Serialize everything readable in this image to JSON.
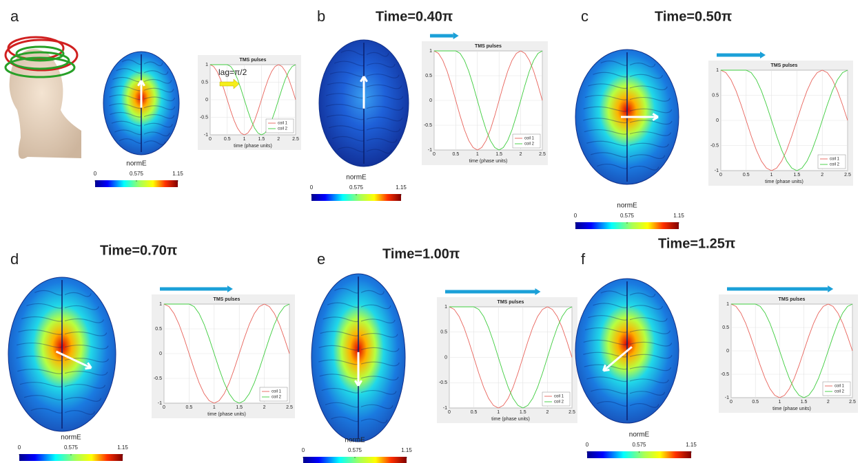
{
  "chart_data": [
    {
      "type": "line",
      "panel": "a",
      "annotation": "lag=π/2",
      "plot_title": "TMS pulses",
      "xlabel": "time (phase units)",
      "x": [
        0,
        0.1,
        0.2,
        0.3,
        0.4,
        0.5,
        0.6,
        0.7,
        0.8,
        0.9,
        1,
        1.1,
        1.2,
        1.3,
        1.4,
        1.5,
        1.6,
        1.7,
        1.8,
        1.9,
        2,
        2.1,
        2.2,
        2.3,
        2.4,
        2.5
      ],
      "series": [
        {
          "name": "coil 1",
          "color": "#e8625a",
          "values": [
            1,
            0.95,
            0.81,
            0.59,
            0.31,
            0,
            -0.31,
            -0.59,
            -0.81,
            -0.95,
            -1,
            -0.95,
            -0.81,
            -0.59,
            -0.31,
            0,
            0.31,
            0.59,
            0.81,
            0.95,
            1,
            0.95,
            0.81,
            0.59,
            0.31,
            0
          ]
        },
        {
          "name": "coil 2",
          "color": "#3ccc3c",
          "values": [
            1,
            1,
            1,
            1,
            1,
            1,
            0.95,
            0.81,
            0.59,
            0.31,
            0,
            -0.31,
            -0.59,
            -0.81,
            -0.95,
            -1,
            -0.95,
            -0.81,
            -0.59,
            -0.31,
            0,
            0.31,
            0.59,
            0.81,
            0.95,
            1
          ]
        }
      ],
      "xlim": [
        0,
        2.5
      ],
      "ylim": [
        -1,
        1
      ],
      "xticks": [
        0,
        0.5,
        1,
        1.5,
        2,
        2.5
      ],
      "yticks": [
        -1,
        -0.5,
        0,
        0.5,
        1
      ],
      "grid": true,
      "legend": "lower right",
      "colorbar": {
        "label": "normE",
        "clim": [
          0,
          1.15
        ],
        "ticks": [
          0,
          0.575,
          1.15
        ]
      }
    },
    {
      "type": "line",
      "panel": "b",
      "title": "Time=0.40π",
      "plot_title": "TMS pulses",
      "xlabel": "time (phase units)",
      "x": [
        0,
        0.1,
        0.2,
        0.3,
        0.4,
        0.5,
        0.6,
        0.7,
        0.8,
        0.9,
        1,
        1.1,
        1.2,
        1.3,
        1.4,
        1.5,
        1.6,
        1.7,
        1.8,
        1.9,
        2,
        2.1,
        2.2,
        2.3,
        2.4,
        2.5
      ],
      "series": [
        {
          "name": "coil 1",
          "color": "#e8625a",
          "values": [
            1,
            0.95,
            0.81,
            0.59,
            0.31,
            0,
            -0.31,
            -0.59,
            -0.81,
            -0.95,
            -1,
            -0.95,
            -0.81,
            -0.59,
            -0.31,
            0,
            0.31,
            0.59,
            0.81,
            0.95,
            1,
            0.95,
            0.81,
            0.59,
            0.31,
            0
          ]
        },
        {
          "name": "coil 2",
          "color": "#3ccc3c",
          "values": [
            1,
            1,
            1,
            1,
            1,
            1,
            0.95,
            0.81,
            0.59,
            0.31,
            0,
            -0.31,
            -0.59,
            -0.81,
            -0.95,
            -1,
            -0.95,
            -0.81,
            -0.59,
            -0.31,
            0,
            0.31,
            0.59,
            0.81,
            0.95,
            1
          ]
        }
      ],
      "xlim": [
        0,
        2.5
      ],
      "ylim": [
        -1,
        1
      ],
      "xticks": [
        0,
        0.5,
        1,
        1.5,
        2,
        2.5
      ],
      "yticks": [
        -1,
        -0.5,
        0,
        0.5,
        1
      ],
      "grid": true,
      "legend": "lower right",
      "colorbar": {
        "label": "normE",
        "clim": [
          0,
          1.15
        ],
        "ticks": [
          0,
          0.575,
          1.15
        ]
      }
    },
    {
      "type": "line",
      "panel": "c",
      "title": "Time=0.50π",
      "plot_title": "TMS pulses",
      "xlabel": "time (phase units)",
      "x": [
        0,
        0.1,
        0.2,
        0.3,
        0.4,
        0.5,
        0.6,
        0.7,
        0.8,
        0.9,
        1,
        1.1,
        1.2,
        1.3,
        1.4,
        1.5,
        1.6,
        1.7,
        1.8,
        1.9,
        2,
        2.1,
        2.2,
        2.3,
        2.4,
        2.5
      ],
      "series": [
        {
          "name": "coil 1",
          "color": "#e8625a",
          "values": [
            1,
            0.95,
            0.81,
            0.59,
            0.31,
            0,
            -0.31,
            -0.59,
            -0.81,
            -0.95,
            -1,
            -0.95,
            -0.81,
            -0.59,
            -0.31,
            0,
            0.31,
            0.59,
            0.81,
            0.95,
            1,
            0.95,
            0.81,
            0.59,
            0.31,
            0
          ]
        },
        {
          "name": "coil 2",
          "color": "#3ccc3c",
          "values": [
            1,
            1,
            1,
            1,
            1,
            1,
            0.95,
            0.81,
            0.59,
            0.31,
            0,
            -0.31,
            -0.59,
            -0.81,
            -0.95,
            -1,
            -0.95,
            -0.81,
            -0.59,
            -0.31,
            0,
            0.31,
            0.59,
            0.81,
            0.95,
            1
          ]
        }
      ],
      "xlim": [
        0,
        2.5
      ],
      "ylim": [
        -1,
        1
      ],
      "xticks": [
        0,
        0.5,
        1,
        1.5,
        2,
        2.5
      ],
      "yticks": [
        -1,
        -0.5,
        0,
        0.5,
        1
      ],
      "grid": true,
      "legend": "lower right",
      "colorbar": {
        "label": "normE",
        "clim": [
          0,
          1.15
        ],
        "ticks": [
          0,
          0.575,
          1.15
        ]
      }
    },
    {
      "type": "line",
      "panel": "d",
      "title": "Time=0.70π",
      "plot_title": "TMS pulses",
      "xlabel": "time (phase units)",
      "x": [
        0,
        0.1,
        0.2,
        0.3,
        0.4,
        0.5,
        0.6,
        0.7,
        0.8,
        0.9,
        1,
        1.1,
        1.2,
        1.3,
        1.4,
        1.5,
        1.6,
        1.7,
        1.8,
        1.9,
        2,
        2.1,
        2.2,
        2.3,
        2.4,
        2.5
      ],
      "series": [
        {
          "name": "coil 1",
          "color": "#e8625a",
          "values": [
            1,
            0.95,
            0.81,
            0.59,
            0.31,
            0,
            -0.31,
            -0.59,
            -0.81,
            -0.95,
            -1,
            -0.95,
            -0.81,
            -0.59,
            -0.31,
            0,
            0.31,
            0.59,
            0.81,
            0.95,
            1,
            0.95,
            0.81,
            0.59,
            0.31,
            0
          ]
        },
        {
          "name": "coil 2",
          "color": "#3ccc3c",
          "values": [
            1,
            1,
            1,
            1,
            1,
            1,
            0.95,
            0.81,
            0.59,
            0.31,
            0,
            -0.31,
            -0.59,
            -0.81,
            -0.95,
            -1,
            -0.95,
            -0.81,
            -0.59,
            -0.31,
            0,
            0.31,
            0.59,
            0.81,
            0.95,
            1
          ]
        }
      ],
      "xlim": [
        0,
        2.5
      ],
      "ylim": [
        -1,
        1
      ],
      "xticks": [
        0,
        0.5,
        1,
        1.5,
        2,
        2.5
      ],
      "yticks": [
        -1,
        -0.5,
        0,
        0.5,
        1
      ],
      "grid": true,
      "legend": "lower right",
      "colorbar": {
        "label": "normE",
        "clim": [
          0,
          1.15
        ],
        "ticks": [
          0,
          0.575,
          1.15
        ]
      }
    },
    {
      "type": "line",
      "panel": "e",
      "title": "Time=1.00π",
      "plot_title": "TMS pulses",
      "xlabel": "time (phase units)",
      "x": [
        0,
        0.1,
        0.2,
        0.3,
        0.4,
        0.5,
        0.6,
        0.7,
        0.8,
        0.9,
        1,
        1.1,
        1.2,
        1.3,
        1.4,
        1.5,
        1.6,
        1.7,
        1.8,
        1.9,
        2,
        2.1,
        2.2,
        2.3,
        2.4,
        2.5
      ],
      "series": [
        {
          "name": "coil 1",
          "color": "#e8625a",
          "values": [
            1,
            0.95,
            0.81,
            0.59,
            0.31,
            0,
            -0.31,
            -0.59,
            -0.81,
            -0.95,
            -1,
            -0.95,
            -0.81,
            -0.59,
            -0.31,
            0,
            0.31,
            0.59,
            0.81,
            0.95,
            1,
            0.95,
            0.81,
            0.59,
            0.31,
            0
          ]
        },
        {
          "name": "coil 2",
          "color": "#3ccc3c",
          "values": [
            1,
            1,
            1,
            1,
            1,
            1,
            0.95,
            0.81,
            0.59,
            0.31,
            0,
            -0.31,
            -0.59,
            -0.81,
            -0.95,
            -1,
            -0.95,
            -0.81,
            -0.59,
            -0.31,
            0,
            0.31,
            0.59,
            0.81,
            0.95,
            1
          ]
        }
      ],
      "xlim": [
        0,
        2.5
      ],
      "ylim": [
        -1,
        1
      ],
      "xticks": [
        0,
        0.5,
        1,
        1.5,
        2,
        2.5
      ],
      "yticks": [
        -1,
        -0.5,
        0,
        0.5,
        1
      ],
      "grid": true,
      "legend": "lower right",
      "colorbar": {
        "label": "normE",
        "clim": [
          0,
          1.15
        ],
        "ticks": [
          0,
          0.575,
          1.15
        ]
      }
    },
    {
      "type": "line",
      "panel": "f",
      "title": "Time=1.25π",
      "plot_title": "TMS pulses",
      "xlabel": "time (phase units)",
      "x": [
        0,
        0.1,
        0.2,
        0.3,
        0.4,
        0.5,
        0.6,
        0.7,
        0.8,
        0.9,
        1,
        1.1,
        1.2,
        1.3,
        1.4,
        1.5,
        1.6,
        1.7,
        1.8,
        1.9,
        2,
        2.1,
        2.2,
        2.3,
        2.4,
        2.5
      ],
      "series": [
        {
          "name": "coil 1",
          "color": "#e8625a",
          "values": [
            1,
            0.95,
            0.81,
            0.59,
            0.31,
            0,
            -0.31,
            -0.59,
            -0.81,
            -0.95,
            -1,
            -0.95,
            -0.81,
            -0.59,
            -0.31,
            0,
            0.31,
            0.59,
            0.81,
            0.95,
            1,
            0.95,
            0.81,
            0.59,
            0.31,
            0
          ]
        },
        {
          "name": "coil 2",
          "color": "#3ccc3c",
          "values": [
            1,
            1,
            1,
            1,
            1,
            1,
            0.95,
            0.81,
            0.59,
            0.31,
            0,
            -0.31,
            -0.59,
            -0.81,
            -0.95,
            -1,
            -0.95,
            -0.81,
            -0.59,
            -0.31,
            0,
            0.31,
            0.59,
            0.81,
            0.95,
            1
          ]
        }
      ],
      "xlim": [
        0,
        2.5
      ],
      "ylim": [
        -1,
        1
      ],
      "xticks": [
        0,
        0.5,
        1,
        1.5,
        2,
        2.5
      ],
      "yticks": [
        -1,
        -0.5,
        0,
        0.5,
        1
      ],
      "grid": true,
      "legend": "lower right",
      "colorbar": {
        "label": "normE",
        "clim": [
          0,
          1.15
        ],
        "ticks": [
          0,
          0.575,
          1.15
        ]
      }
    }
  ]
}
